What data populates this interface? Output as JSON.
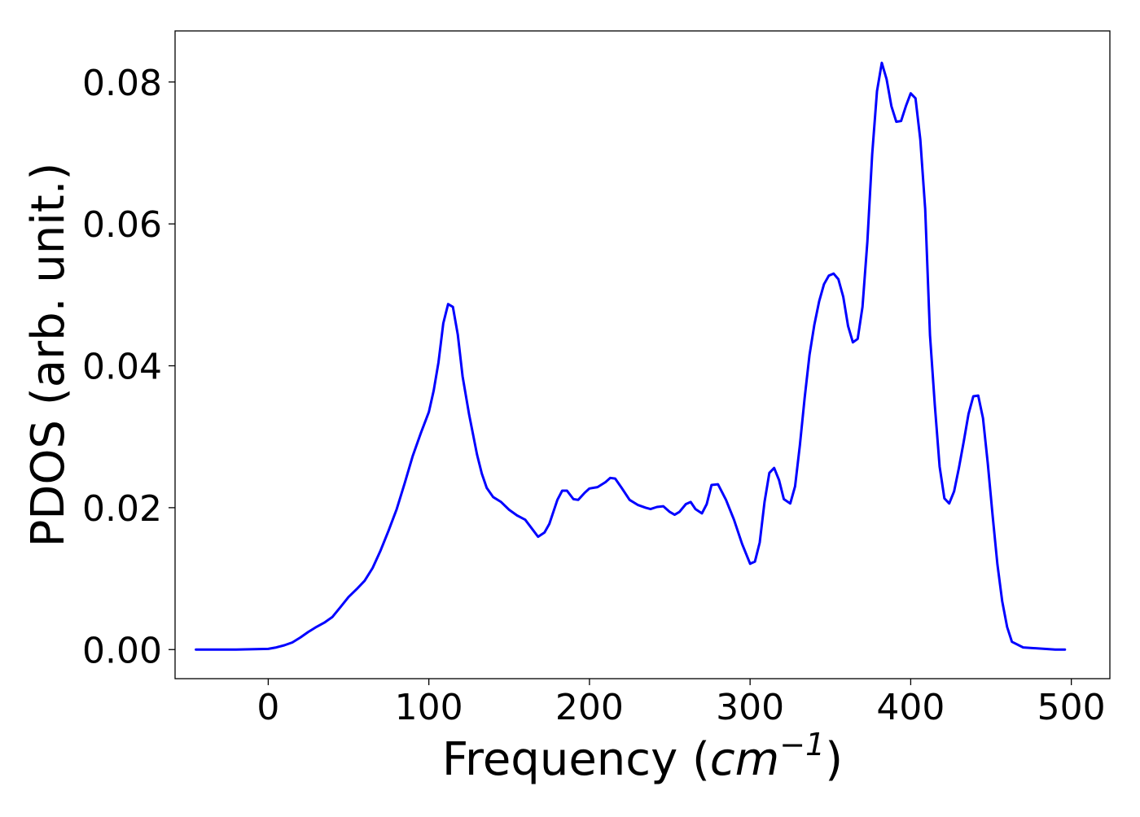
{
  "chart_data": {
    "type": "line",
    "title": "",
    "xlabel_main": "Frequency (",
    "xlabel_unit_base": "cm",
    "xlabel_unit_exp": "−1",
    "xlabel_close": ")",
    "ylabel": "PDOS (arb. unit.)",
    "xlim": [
      -58,
      524
    ],
    "ylim": [
      -0.0041,
      0.0872
    ],
    "xticks": [
      0,
      100,
      200,
      300,
      400,
      500
    ],
    "xtick_labels": [
      "0",
      "100",
      "200",
      "300",
      "400",
      "500"
    ],
    "yticks": [
      0.0,
      0.02,
      0.04,
      0.06,
      0.08
    ],
    "ytick_labels": [
      "0.00",
      "0.02",
      "0.04",
      "0.06",
      "0.08"
    ],
    "grid": false,
    "legend": "none",
    "series": [
      {
        "color": "#0000ff",
        "x": [
          -45,
          -20,
          0,
          5,
          10,
          15,
          20,
          25,
          30,
          35,
          40,
          45,
          50,
          55,
          60,
          65,
          70,
          75,
          80,
          85,
          90,
          95,
          100,
          103,
          106,
          109,
          112,
          115,
          118,
          121,
          125,
          130,
          133,
          136,
          140,
          145,
          150,
          155,
          160,
          165,
          168,
          172,
          175,
          180,
          183,
          186,
          190,
          193,
          197,
          200,
          205,
          210,
          213,
          216,
          220,
          225,
          230,
          235,
          238,
          242,
          246,
          250,
          253,
          256,
          260,
          263,
          266,
          270,
          273,
          276,
          280,
          285,
          290,
          295,
          300,
          303,
          306,
          309,
          312,
          315,
          318,
          321,
          325,
          328,
          331,
          334,
          337,
          340,
          343,
          346,
          349,
          352,
          355,
          358,
          361,
          364,
          367,
          370,
          373,
          376,
          379,
          382,
          385,
          388,
          391,
          394,
          397,
          400,
          403,
          406,
          409,
          412,
          415,
          418,
          421,
          424,
          427,
          430,
          433,
          436,
          439,
          442,
          445,
          448,
          451,
          454,
          457,
          460,
          463,
          470,
          490,
          496
        ],
        "y": [
          0.0,
          0.0,
          0.0001,
          0.0003,
          0.0006,
          0.001,
          0.0017,
          0.0025,
          0.0032,
          0.0038,
          0.0046,
          0.006,
          0.0074,
          0.0085,
          0.0097,
          0.0115,
          0.014,
          0.0168,
          0.0198,
          0.0235,
          0.0273,
          0.0305,
          0.0335,
          0.0365,
          0.0405,
          0.046,
          0.0487,
          0.0483,
          0.0444,
          0.0385,
          0.0332,
          0.0275,
          0.0248,
          0.0228,
          0.0215,
          0.0208,
          0.0197,
          0.0189,
          0.0183,
          0.0168,
          0.0159,
          0.0165,
          0.0177,
          0.0211,
          0.0224,
          0.0224,
          0.0212,
          0.0211,
          0.0221,
          0.0227,
          0.0229,
          0.0236,
          0.0242,
          0.0241,
          0.0228,
          0.0211,
          0.0204,
          0.02,
          0.0198,
          0.0201,
          0.0202,
          0.0194,
          0.019,
          0.0194,
          0.0205,
          0.0208,
          0.0198,
          0.0192,
          0.0205,
          0.0232,
          0.0233,
          0.0211,
          0.0183,
          0.0149,
          0.0121,
          0.0124,
          0.0151,
          0.0208,
          0.0249,
          0.0256,
          0.0239,
          0.0212,
          0.0206,
          0.023,
          0.0288,
          0.0355,
          0.0415,
          0.0458,
          0.0491,
          0.0515,
          0.0527,
          0.053,
          0.0522,
          0.0497,
          0.0456,
          0.0433,
          0.0438,
          0.0483,
          0.0575,
          0.0698,
          0.0787,
          0.0827,
          0.0804,
          0.0766,
          0.0744,
          0.0745,
          0.0766,
          0.0784,
          0.0777,
          0.0719,
          0.0621,
          0.0443,
          0.0345,
          0.0258,
          0.0213,
          0.0206,
          0.0223,
          0.0256,
          0.0293,
          0.0332,
          0.0357,
          0.0358,
          0.0326,
          0.0262,
          0.0189,
          0.012,
          0.0068,
          0.0032,
          0.0011,
          0.0003,
          0.0,
          0.0
        ]
      }
    ]
  }
}
